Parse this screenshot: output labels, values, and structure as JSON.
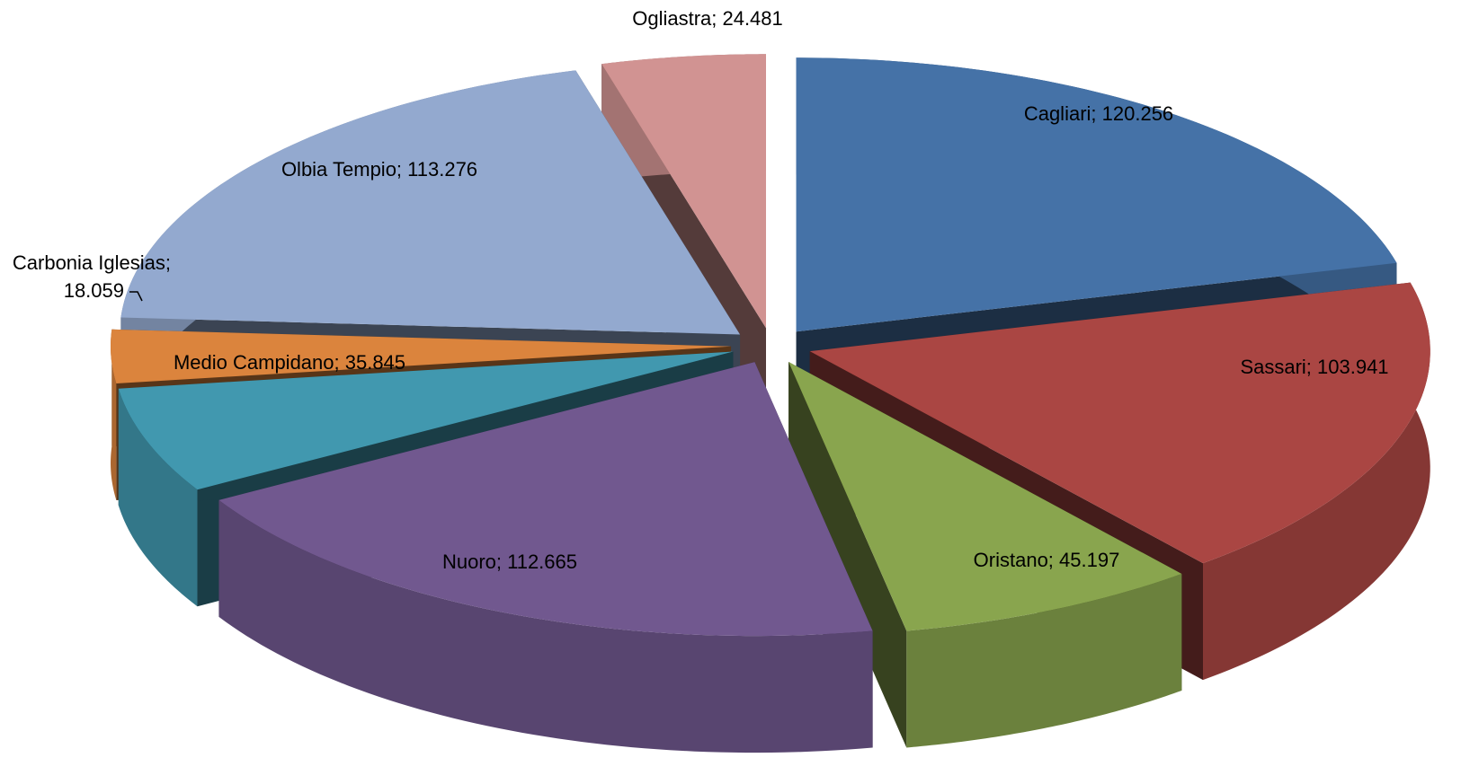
{
  "chart_data": {
    "type": "pie3d",
    "categories": [
      "Cagliari",
      "Sassari",
      "Oristano",
      "Nuoro",
      "Medio Campidano",
      "Carbonia Iglesias",
      "Olbia Tempio",
      "Ogliastra"
    ],
    "values": [
      120256,
      103941,
      45197,
      112665,
      35845,
      18059,
      113276,
      24481
    ],
    "value_labels": [
      "Cagliari; 120.256",
      "Sassari; 103.941",
      "Oristano; 45.197",
      "Nuoro; 112.665",
      "Medio Campidano; 35.845",
      "Carbonia Iglesias; 18.059",
      "Olbia Tempio; 113.276",
      "Ogliastra; 24.481"
    ],
    "colors": [
      "#4572a7",
      "#aa4643",
      "#89a54e",
      "#71588f",
      "#4198af",
      "#db843d",
      "#93a9cf",
      "#d19392"
    ]
  }
}
